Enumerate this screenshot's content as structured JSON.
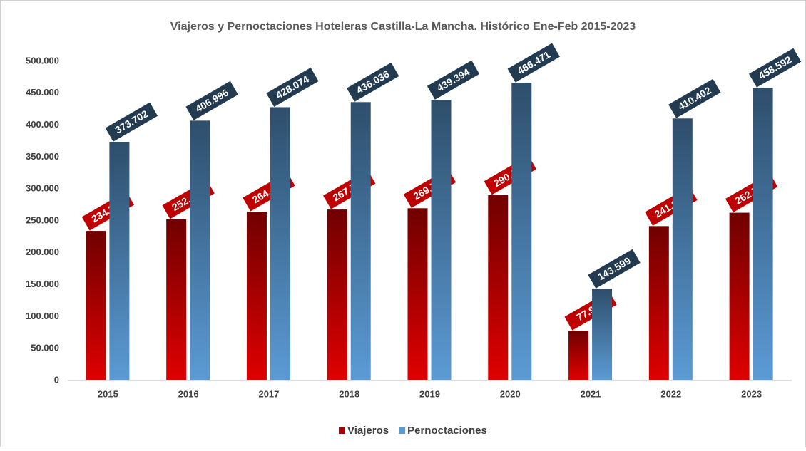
{
  "chart_data": {
    "type": "bar",
    "title": "Viajeros y Pernoctaciones Hoteleras Castilla-La Mancha. Histórico Ene-Feb 2015-2023",
    "categories": [
      "2015",
      "2016",
      "2017",
      "2018",
      "2019",
      "2020",
      "2021",
      "2022",
      "2023"
    ],
    "series": [
      {
        "name": "Viajeros",
        "color": "#e00000",
        "values": [
          234283,
          252413,
          264425,
          267772,
          269756,
          290330,
          77989,
          241815,
          262739
        ],
        "value_labels": [
          "234.283",
          "252.413",
          "264.425",
          "267.772",
          "269.756",
          "290.330",
          "77.989",
          "241.815",
          "262.739"
        ]
      },
      {
        "name": "Pernoctaciones",
        "color": "#5b9bd5",
        "values": [
          373702,
          406996,
          428074,
          436036,
          439394,
          466471,
          143599,
          410402,
          458592
        ],
        "value_labels": [
          "373.702",
          "406.996",
          "428.074",
          "436.036",
          "439.394",
          "466.471",
          "143.599",
          "410.402",
          "458.592"
        ]
      }
    ],
    "ylim": [
      0,
      500000
    ],
    "yticks": [
      0,
      {
        "value": 50000,
        "label": "50.000"
      },
      {
        "value": 100000,
        "label": "100.000"
      },
      {
        "value": 150000,
        "label": "150.000"
      },
      {
        "value": 200000,
        "label": "200.000"
      },
      {
        "value": 250000,
        "label": "250.000"
      },
      {
        "value": 300000,
        "label": "300.000"
      },
      {
        "value": 350000,
        "label": "350.000"
      },
      {
        "value": 400000,
        "label": "400.000"
      },
      {
        "value": 450000,
        "label": "450.000"
      },
      {
        "value": 500000,
        "label": "500.000"
      }
    ],
    "grid": false,
    "legend": "bottom"
  }
}
